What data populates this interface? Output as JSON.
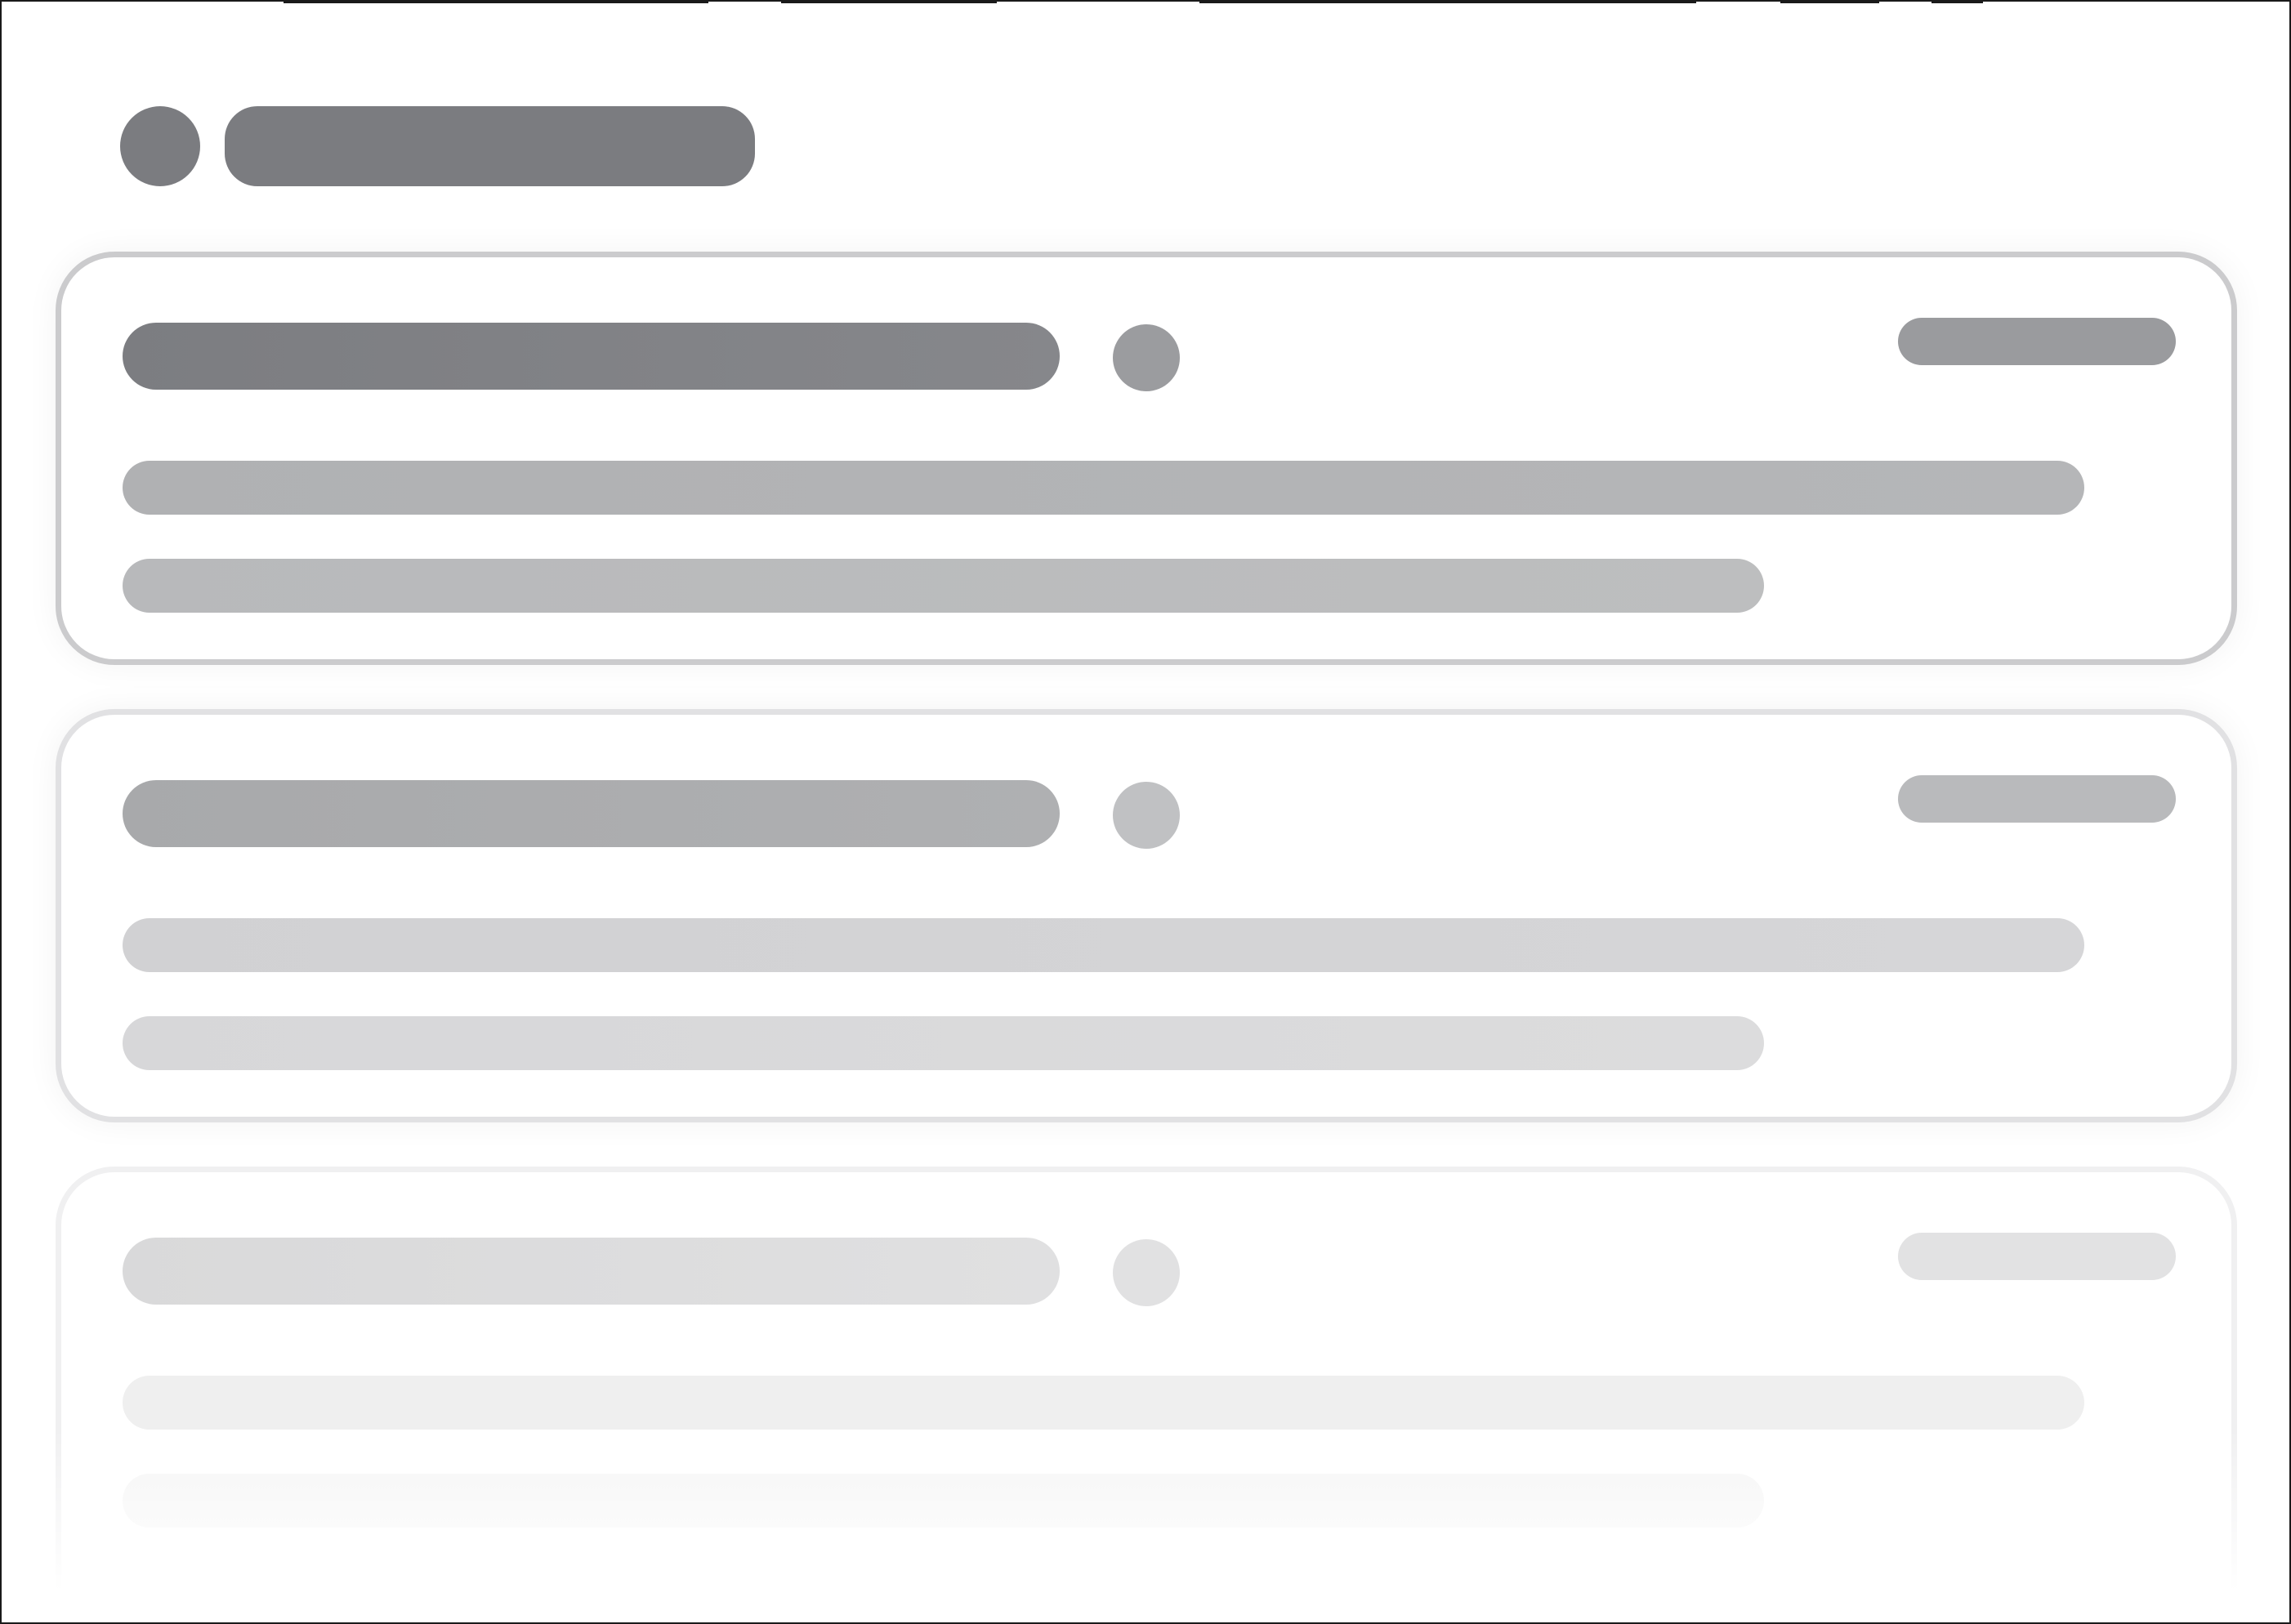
{
  "window": {
    "title": ""
  },
  "state": "loading",
  "colors": {
    "frame_border": "#1a1a1a",
    "header_skeleton": "#7b7c80",
    "card1_title": "#838488",
    "card1_meta": "#9a9b9e",
    "card1_line": "#b4b5b7",
    "card2_title": "#abacae",
    "card2_meta": "#b9babc",
    "card2_line": "#d4d4d6",
    "card3_title": "#dcdcdd",
    "card3_line": "#f0f0f0",
    "background": "#ffffff"
  },
  "skeleton_cards": [
    {
      "tone": "dark"
    },
    {
      "tone": "medium"
    },
    {
      "tone": "light"
    }
  ]
}
